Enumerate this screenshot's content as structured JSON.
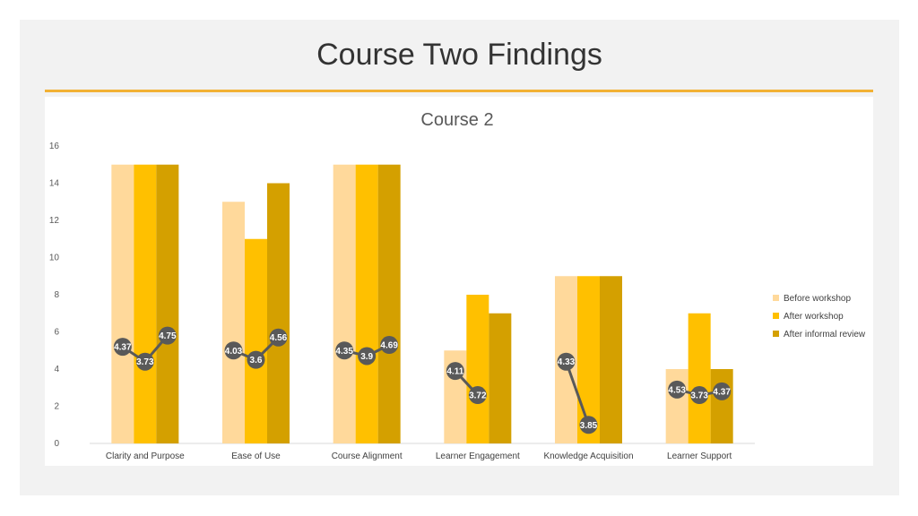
{
  "slide": {
    "title": "Course Two Findings"
  },
  "chart_data": {
    "type": "bar",
    "title": "Course 2",
    "categories": [
      "Clarity and Purpose",
      "Ease of Use",
      "Course Alignment",
      "Learner Engagement",
      "Knowledge Acquisition",
      "Learner Support"
    ],
    "ylim": [
      0,
      16
    ],
    "yticks": [
      0,
      2,
      4,
      6,
      8,
      10,
      12,
      14,
      16
    ],
    "legend_position": "right",
    "grid": false,
    "series": [
      {
        "name": "Before workshop",
        "color": "#ffd99b",
        "values": [
          15,
          13,
          15,
          5,
          9,
          4
        ]
      },
      {
        "name": "After workshop",
        "color": "#ffc000",
        "values": [
          15,
          11,
          15,
          8,
          9,
          7
        ]
      },
      {
        "name": "After informal review",
        "color": "#d4a000",
        "values": [
          15,
          14,
          15,
          7,
          9,
          4
        ]
      }
    ],
    "line_overlay": {
      "type": "line",
      "color": "#595959",
      "labels": [
        [
          "4.37",
          "3.73",
          "4.75"
        ],
        [
          "4.03",
          "3.6",
          "4.56"
        ],
        [
          "4.35",
          "3.9",
          "4.69"
        ],
        [
          "4.11",
          "3.72",
          null
        ],
        [
          "4.33",
          "3.85",
          null
        ],
        [
          "4.53",
          "3.73",
          "4.37"
        ]
      ],
      "values": [
        [
          5.2,
          4.4,
          5.8
        ],
        [
          5.0,
          4.5,
          5.7
        ],
        [
          5.0,
          4.7,
          5.3
        ],
        [
          3.9,
          2.6,
          null
        ],
        [
          4.4,
          1.0,
          null
        ],
        [
          2.9,
          2.6,
          2.8
        ]
      ]
    }
  }
}
